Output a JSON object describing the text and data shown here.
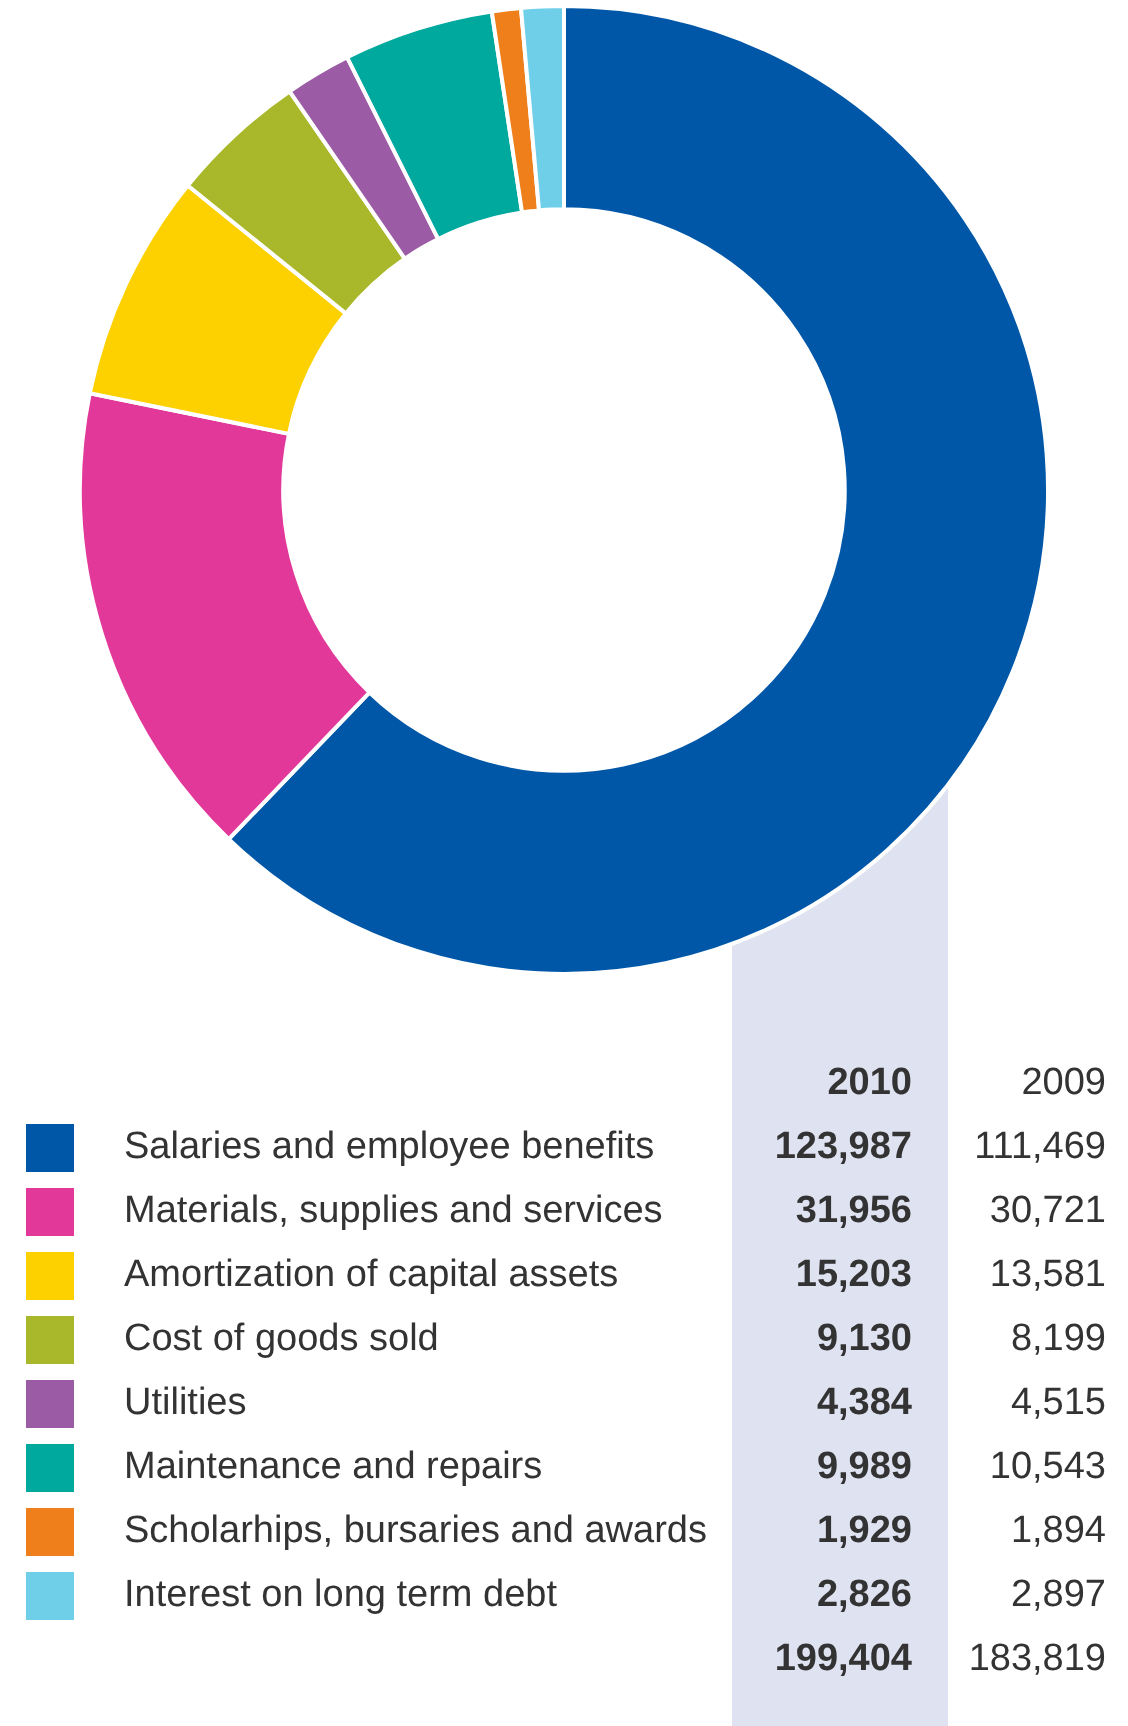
{
  "chart_data": {
    "type": "donut",
    "categories": [
      "Salaries and employee benefits",
      "Materials, supplies and services",
      "Amortization of capital assets",
      "Cost of goods sold",
      "Utilities",
      "Maintenance and repairs",
      "Scholarhips, bursaries and awards",
      "Interest on long term debt"
    ],
    "colors": [
      "#0057a8",
      "#e2389a",
      "#fdd000",
      "#a9b82a",
      "#9b5ba5",
      "#00a99d",
      "#ee7f1a",
      "#6fcfe8"
    ],
    "series": [
      {
        "name": "2010",
        "values": [
          123987,
          31956,
          15203,
          9130,
          4384,
          9989,
          1929,
          2826
        ],
        "value_labels": [
          "123,987",
          "31,956",
          "15,203",
          "9,130",
          "4,384",
          "9,989",
          "1,929",
          "2,826"
        ]
      }
    ],
    "totals": [
      "199,404"
    ],
    "annotations": [
      "2009",
      "111,469",
      "30,721",
      "13,581",
      "8,199",
      "4,515",
      "10,543",
      "1,894",
      "2,897",
      "183,819"
    ],
    "legend": "bottom"
  }
}
